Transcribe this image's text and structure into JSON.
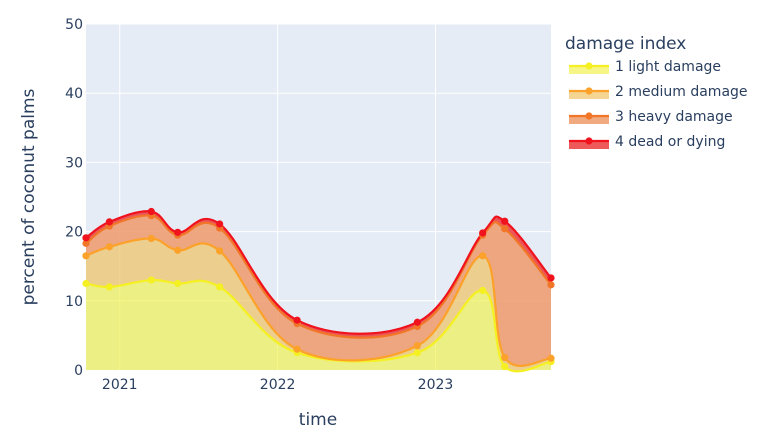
{
  "chart_data": {
    "type": "area",
    "stacked": true,
    "xlabel": "time",
    "ylabel": "percent of coconut palms",
    "xlim": [
      "2020-10-15",
      "2023-09-25"
    ],
    "ylim": [
      0,
      50
    ],
    "x_ticks": [
      {
        "date": "2021-01-01",
        "label": "2021"
      },
      {
        "date": "2022-01-01",
        "label": "2022"
      },
      {
        "date": "2023-01-01",
        "label": "2023"
      }
    ],
    "y_ticks": [
      0,
      10,
      20,
      30,
      40,
      50
    ],
    "grid": true,
    "legend_title": "damage index",
    "legend_placement": "right",
    "dates": [
      "2020-10-15",
      "2020-12-08",
      "2021-03-15",
      "2021-05-15",
      "2021-08-20",
      "2022-02-15",
      "2022-11-20",
      "2023-04-20",
      "2023-06-10",
      "2023-09-25"
    ],
    "series": [
      {
        "name": "1 light damage",
        "color": "#f5f022",
        "fill": "rgba(240,240,60,0.62)",
        "values": [
          12.5,
          12.0,
          13.0,
          12.5,
          12.0,
          2.5,
          2.5,
          11.5,
          0.5,
          1.2
        ]
      },
      {
        "name": "2 medium damage",
        "color": "#fca12a",
        "fill": "rgba(240,195,100,0.70)",
        "values": [
          4.0,
          5.8,
          6.0,
          4.8,
          5.2,
          0.5,
          1.0,
          5.0,
          1.3,
          0.5
        ]
      },
      {
        "name": "3 heavy damage",
        "color": "#f27628",
        "fill": "rgba(238,150,100,0.82)",
        "values": [
          1.8,
          3.0,
          3.3,
          2.2,
          3.3,
          3.7,
          2.8,
          3.0,
          18.6,
          10.6
        ]
      },
      {
        "name": "4 dead or dying",
        "color": "#f0121d",
        "fill": "rgba(235,60,60,0.85)",
        "values": [
          0.8,
          0.6,
          0.6,
          0.4,
          0.6,
          0.5,
          0.6,
          0.3,
          1.1,
          1.0
        ]
      }
    ]
  }
}
